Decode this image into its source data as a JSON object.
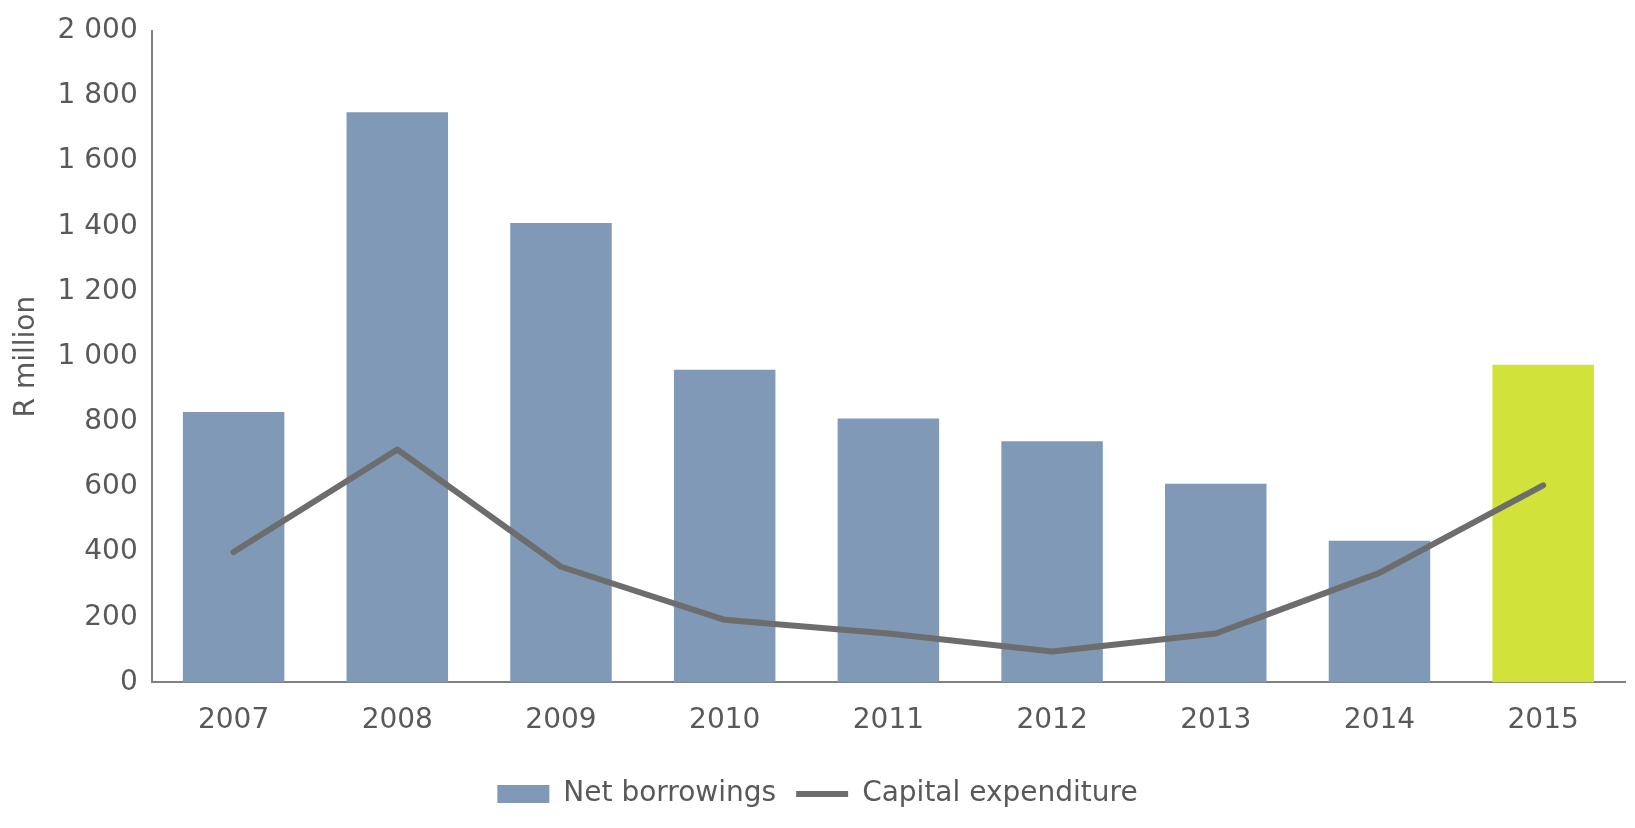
{
  "chart_data": {
    "type": "bar",
    "ylabel": "R million",
    "categories": [
      "2007",
      "2008",
      "2009",
      "2010",
      "2011",
      "2012",
      "2013",
      "2014",
      "2015"
    ],
    "series": [
      {
        "name": "Net borrowings",
        "color": "#7f99b6",
        "colors": [
          "#7f99b6",
          "#7f99b6",
          "#7f99b6",
          "#7f99b6",
          "#7f99b6",
          "#7f99b6",
          "#7f99b6",
          "#7f99b6",
          "#d1e23a"
        ],
        "values": [
          830,
          1750,
          1410,
          960,
          810,
          740,
          610,
          435,
          975
        ]
      },
      {
        "name": "Capital expenditure",
        "type": "line",
        "color": "#6d6d6d",
        "values": [
          400,
          715,
          355,
          192,
          150,
          95,
          150,
          336,
          605
        ]
      }
    ],
    "ylim": [
      0,
      2000
    ],
    "yticks": [
      0,
      200,
      400,
      600,
      800,
      {
        "value": 1000,
        "label": "1 000"
      },
      {
        "value": 1200,
        "label": "1 200"
      },
      {
        "value": 1400,
        "label": "1 400"
      },
      {
        "value": 1600,
        "label": "1 600"
      },
      {
        "value": 1800,
        "label": "1 800"
      },
      {
        "value": 2000,
        "label": "2 000"
      }
    ],
    "grid": false,
    "legend": "bottom",
    "marker": "none",
    "line_style": "solid"
  }
}
